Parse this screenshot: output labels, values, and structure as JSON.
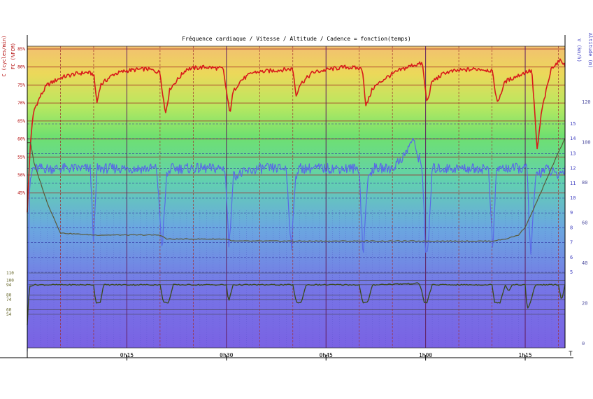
{
  "title": "Fréquence cardiaque / Vitesse / Altitude / Cadence = fonction(temps)",
  "colors": {
    "hr": "#d81b1b",
    "speed": "#5a6ae6",
    "altitude": "#5a5a3a",
    "cadence": "#3a4a1a",
    "axis_left": "#b00000",
    "axis_right": "#4040c0",
    "axis_cad": "#606020",
    "bg_top": "#f0d060",
    "bg_mid": "#70e070",
    "bg_low": "#60c0c0",
    "bg_bottom": "#7a6ae0"
  },
  "chart_data": {
    "type": "line",
    "title": "Fréquence cardiaque / Vitesse / Altitude / Cadence = fonction(temps)",
    "x_unit": "minutes",
    "xlim": [
      0,
      81
    ],
    "x_ticks": [
      {
        "value": 15,
        "label": "0h15"
      },
      {
        "value": 30,
        "label": "0h30"
      },
      {
        "value": 45,
        "label": "0h45"
      },
      {
        "value": 60,
        "label": "1h00"
      },
      {
        "value": 75,
        "label": "1h15"
      }
    ],
    "x_axis_end_label": "T",
    "axes": {
      "hr": {
        "label": "FC (%FCM)",
        "ticks": [
          "45%",
          "50%",
          "55%",
          "60%",
          "65%",
          "70%",
          "75%",
          "80%",
          "85%"
        ],
        "tick_values": [
          45,
          50,
          55,
          60,
          65,
          70,
          75,
          80,
          85
        ],
        "range": [
          40,
          85
        ]
      },
      "cadence": {
        "label": "C (cycles/min)",
        "ticks": [
          "54",
          "60",
          "74",
          "80",
          "94",
          "100",
          "110"
        ],
        "tick_values": [
          54,
          60,
          74,
          80,
          94,
          100,
          110
        ],
        "range": [
          0,
          120
        ]
      },
      "speed": {
        "label": "V (km/h)",
        "ticks": [
          "5",
          "6",
          "7",
          "8",
          "9",
          "10",
          "11",
          "12",
          "13",
          "14",
          "15"
        ],
        "tick_values": [
          5,
          6,
          7,
          8,
          9,
          10,
          11,
          12,
          13,
          14,
          15
        ],
        "range": [
          0,
          15
        ]
      },
      "altitude": {
        "label": "Altitude (m)",
        "ticks": [
          "0",
          "20",
          "40",
          "60",
          "80",
          "100",
          "120"
        ],
        "tick_values": [
          0,
          20,
          40,
          60,
          80,
          100,
          120
        ],
        "range": [
          0,
          120
        ]
      }
    },
    "series": [
      {
        "name": "FC (%FCM)",
        "axis": "hr",
        "x": [
          0,
          0.5,
          1,
          2,
          3,
          5,
          7,
          9,
          10,
          10.5,
          11,
          13,
          15,
          18,
          20,
          20.8,
          21.5,
          24,
          27,
          29.5,
          30.5,
          31,
          32,
          34,
          37,
          40,
          40.5,
          41,
          43,
          46,
          48,
          50.5,
          51,
          52,
          54,
          56,
          58,
          59.5,
          60.2,
          61,
          63,
          65,
          68,
          70,
          70.8,
          72,
          75,
          76,
          76.8,
          77.5,
          79,
          80.5,
          81
        ],
        "values": [
          40,
          60,
          68,
          72,
          75,
          77,
          78,
          78.5,
          78,
          70,
          75,
          78,
          79,
          79.5,
          78.5,
          67,
          74,
          79.5,
          80,
          79.5,
          67,
          73,
          76,
          78.5,
          79,
          79.5,
          72,
          75,
          78.5,
          79.5,
          80,
          79.5,
          69,
          74,
          77,
          79,
          80.5,
          81,
          70,
          76,
          78.5,
          79,
          79.5,
          79,
          70,
          76,
          78.5,
          79,
          57,
          68,
          80,
          82,
          80
        ]
      },
      {
        "name": "V (km/h)",
        "axis": "speed",
        "x": [
          0,
          0.3,
          0.8,
          2,
          5,
          9.5,
          10,
          10.5,
          11,
          14,
          19.5,
          20.3,
          21,
          21.6,
          24,
          28,
          29.8,
          30.4,
          31,
          35,
          39,
          39.8,
          40.4,
          41,
          45,
          50,
          50.6,
          51.2,
          52,
          55,
          57,
          58,
          59.5,
          60,
          60.3,
          61,
          64,
          69.5,
          70.1,
          70.7,
          74,
          75.3,
          75.8,
          76.6,
          78,
          80,
          81
        ],
        "values": [
          0,
          10.5,
          12,
          12,
          12,
          12,
          7,
          12,
          12,
          12,
          12,
          6.5,
          11.5,
          12,
          12,
          12,
          12,
          6.5,
          11.5,
          12,
          12,
          6.5,
          11.5,
          12,
          12,
          12,
          6,
          11,
          12,
          12,
          13,
          14,
          12,
          6.5,
          6,
          12,
          12,
          12,
          6.5,
          12,
          12,
          12,
          6,
          11.5,
          12,
          11.5,
          12
        ]
      },
      {
        "name": "Altitude (m)",
        "axis": "altitude",
        "x": [
          0,
          0.5,
          1,
          3,
          5,
          10,
          20,
          21,
          30,
          31,
          40,
          41,
          50,
          51,
          60,
          61,
          70,
          72,
          74,
          75,
          76,
          78,
          80,
          81
        ],
        "values": [
          100,
          100,
          90,
          70,
          55,
          54,
          54,
          52,
          52,
          51,
          51,
          51,
          51,
          51,
          51,
          51,
          51,
          52,
          54,
          58,
          65,
          80,
          95,
          102
        ]
      },
      {
        "name": "C (cycles/min)",
        "axis": "cadence",
        "x": [
          0,
          0.3,
          1,
          5,
          10,
          10.3,
          11,
          11.5,
          20,
          20.5,
          21.3,
          22,
          30,
          30.3,
          31,
          40,
          40.5,
          41.3,
          42,
          50,
          50.5,
          51.3,
          52,
          59,
          59.3,
          59.8,
          60.2,
          61,
          70,
          70.4,
          71.2,
          72,
          72.5,
          73,
          75,
          75.3,
          75.8,
          76.5,
          80,
          80.5,
          81
        ],
        "values": [
          40,
          92,
          94,
          94,
          94,
          70,
          70,
          94,
          94,
          70,
          70,
          94,
          94,
          70,
          94,
          94,
          70,
          70,
          94,
          94,
          70,
          70,
          94,
          96,
          90,
          70,
          70,
          94,
          94,
          70,
          70,
          94,
          85,
          94,
          94,
          60,
          70,
          94,
          94,
          72,
          94
        ]
      }
    ],
    "grid": true,
    "legend": "none"
  }
}
